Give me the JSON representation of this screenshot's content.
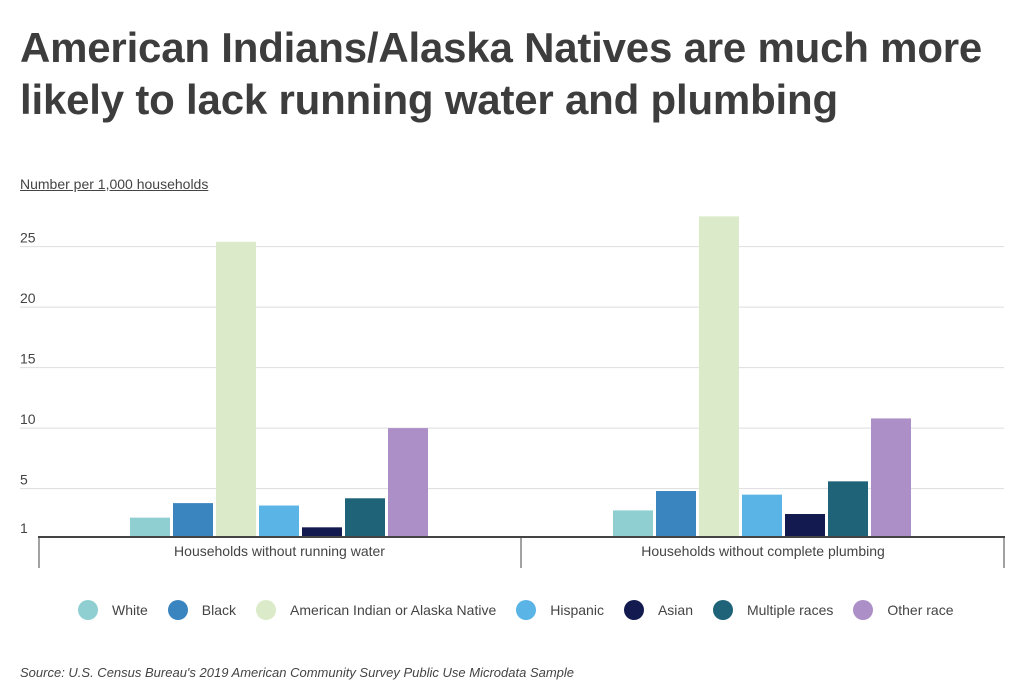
{
  "title": "American Indians/Alaska Natives are much more likely to lack running water and plumbing",
  "source": "Source: U.S. Census Bureau's 2019 American Community Survey Public Use Microdata Sample",
  "chart_data": {
    "type": "bar",
    "title": "American Indians/Alaska Natives are much more likely to lack running water and plumbing",
    "ylabel": "Number per 1,000 households",
    "xlabel": "",
    "ylim": [
      1,
      28
    ],
    "yticks": [
      1,
      5,
      10,
      15,
      20,
      25
    ],
    "grid": true,
    "legend_position": "bottom",
    "categories": [
      "Households without running water",
      "Households without complete plumbing"
    ],
    "series": [
      {
        "name": "White",
        "color": "#8fcfd1",
        "values": [
          2.6,
          3.2
        ]
      },
      {
        "name": "Black",
        "color": "#3a84bf",
        "values": [
          3.8,
          4.8
        ]
      },
      {
        "name": "American Indian or Alaska Native",
        "color": "#dbebc9",
        "values": [
          25.4,
          27.5
        ]
      },
      {
        "name": "Hispanic",
        "color": "#5ab4e6",
        "values": [
          3.6,
          4.5
        ]
      },
      {
        "name": "Asian",
        "color": "#121a4f",
        "values": [
          1.8,
          2.9
        ]
      },
      {
        "name": "Multiple races",
        "color": "#1e6378",
        "values": [
          4.2,
          5.6
        ]
      },
      {
        "name": "Other race",
        "color": "#ad8fc8",
        "values": [
          10.0,
          10.8
        ]
      }
    ]
  }
}
